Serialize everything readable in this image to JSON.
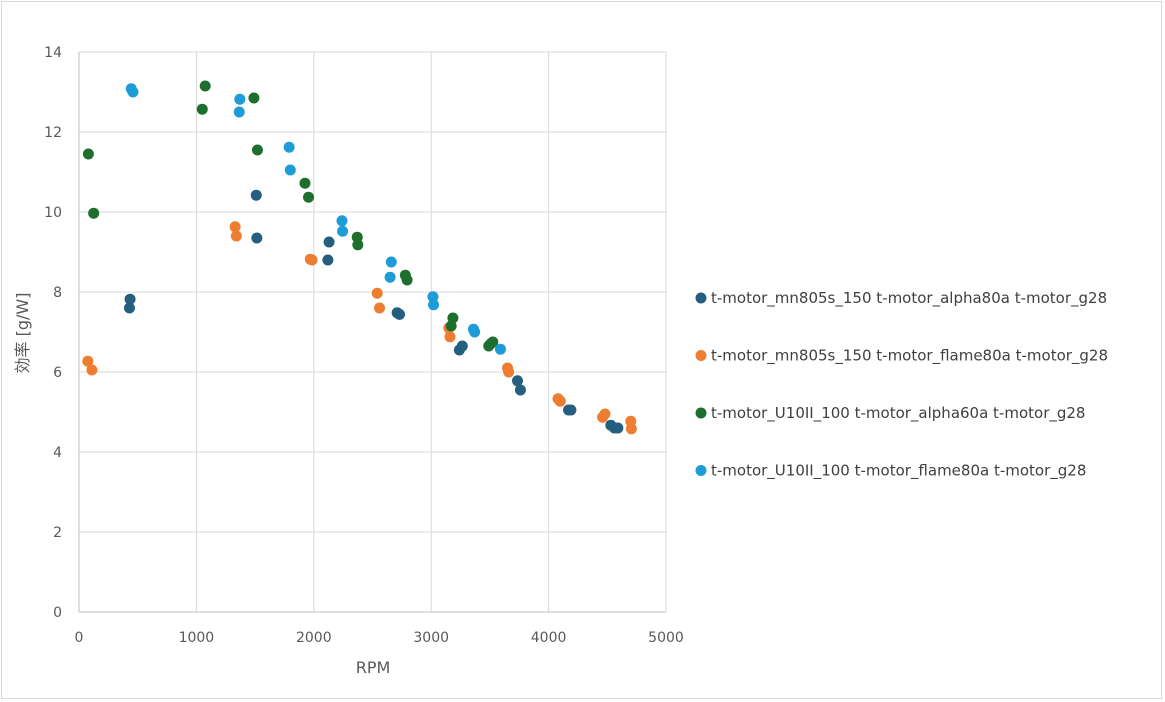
{
  "chart_data": {
    "type": "scatter",
    "title": "",
    "xlabel": "RPM",
    "ylabel": "効率 [g/W]",
    "xlim": [
      0,
      5000
    ],
    "ylim": [
      0,
      14
    ],
    "x_ticks": [
      0,
      1000,
      2000,
      3000,
      4000,
      5000
    ],
    "y_ticks": [
      0,
      2,
      4,
      6,
      8,
      10,
      12,
      14
    ],
    "grid": true,
    "legend_position": "right",
    "series": [
      {
        "name": "t-motor_mn805s_150 t-motor_alpha80a t-motor_g28",
        "color": "#255E7E",
        "points": [
          [
            435,
            7.82
          ],
          [
            430,
            7.6
          ],
          [
            1510,
            10.42
          ],
          [
            1515,
            9.35
          ],
          [
            2130,
            9.25
          ],
          [
            2120,
            8.8
          ],
          [
            2710,
            7.48
          ],
          [
            2730,
            7.44
          ],
          [
            3240,
            6.55
          ],
          [
            3265,
            6.65
          ],
          [
            3735,
            5.78
          ],
          [
            3760,
            5.55
          ],
          [
            4170,
            5.05
          ],
          [
            4190,
            5.05
          ],
          [
            4530,
            4.67
          ],
          [
            4560,
            4.6
          ],
          [
            4590,
            4.6
          ]
        ]
      },
      {
        "name": "t-motor_mn805s_150 t-motor_flame80a t-motor_g28",
        "color": "#ED7D31",
        "points": [
          [
            75,
            6.27
          ],
          [
            110,
            6.05
          ],
          [
            1330,
            9.63
          ],
          [
            1340,
            9.4
          ],
          [
            1970,
            8.82
          ],
          [
            1985,
            8.8
          ],
          [
            2540,
            7.97
          ],
          [
            2560,
            7.6
          ],
          [
            3150,
            7.1
          ],
          [
            3160,
            6.88
          ],
          [
            3650,
            6.1
          ],
          [
            3660,
            6.0
          ],
          [
            4080,
            5.33
          ],
          [
            4100,
            5.27
          ],
          [
            4460,
            4.87
          ],
          [
            4480,
            4.95
          ],
          [
            4700,
            4.77
          ],
          [
            4705,
            4.58
          ]
        ]
      },
      {
        "name": "t-motor_U10II_100 t-motor_alpha60a t-motor_g28",
        "color": "#1E6E2E",
        "points": [
          [
            80,
            11.45
          ],
          [
            125,
            9.97
          ],
          [
            1050,
            12.57
          ],
          [
            1075,
            13.15
          ],
          [
            1490,
            12.85
          ],
          [
            1520,
            11.55
          ],
          [
            1925,
            10.72
          ],
          [
            1955,
            10.37
          ],
          [
            2370,
            9.37
          ],
          [
            2375,
            9.18
          ],
          [
            2780,
            8.42
          ],
          [
            2795,
            8.3
          ],
          [
            3170,
            7.15
          ],
          [
            3185,
            7.35
          ],
          [
            3490,
            6.65
          ],
          [
            3505,
            6.7
          ],
          [
            3525,
            6.75
          ]
        ]
      },
      {
        "name": "t-motor_U10II_100 t-motor_flame80a t-motor_g28",
        "color": "#1E9CD7",
        "points": [
          [
            445,
            13.08
          ],
          [
            460,
            13.0
          ],
          [
            1370,
            12.82
          ],
          [
            1365,
            12.5
          ],
          [
            1790,
            11.62
          ],
          [
            1800,
            11.05
          ],
          [
            2240,
            9.78
          ],
          [
            2245,
            9.52
          ],
          [
            2650,
            8.37
          ],
          [
            2660,
            8.75
          ],
          [
            3015,
            7.88
          ],
          [
            3020,
            7.68
          ],
          [
            3360,
            7.07
          ],
          [
            3370,
            7.0
          ],
          [
            3590,
            6.57
          ]
        ]
      }
    ]
  }
}
